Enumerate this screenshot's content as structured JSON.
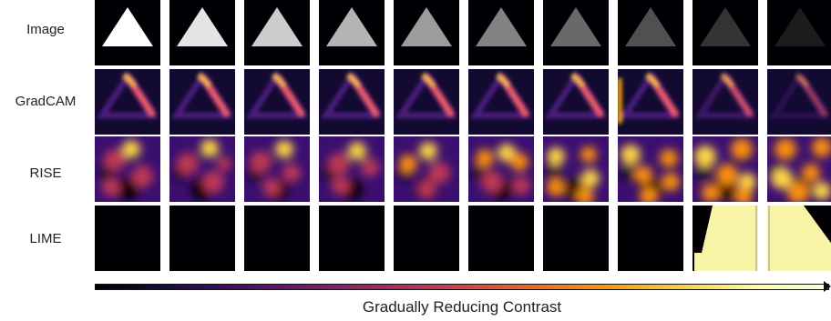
{
  "row_labels": {
    "image": "Image",
    "gradcam": "GradCAM",
    "rise": "RISE",
    "lime": "LIME"
  },
  "caption": "Gradually Reducing Contrast",
  "triangle_gray_levels": [
    255,
    228,
    205,
    180,
    156,
    130,
    105,
    80,
    52,
    28
  ],
  "gradcam_intensity": [
    1.0,
    1.0,
    1.0,
    1.0,
    1.0,
    1.0,
    1.0,
    1.0,
    0.75,
    0.45
  ],
  "lime_highlighted": [
    false,
    false,
    false,
    false,
    false,
    false,
    false,
    false,
    true,
    true
  ],
  "colors": {
    "background": "#000004",
    "lime_highlight": "#f8f5a6",
    "colormap": "inferno"
  }
}
